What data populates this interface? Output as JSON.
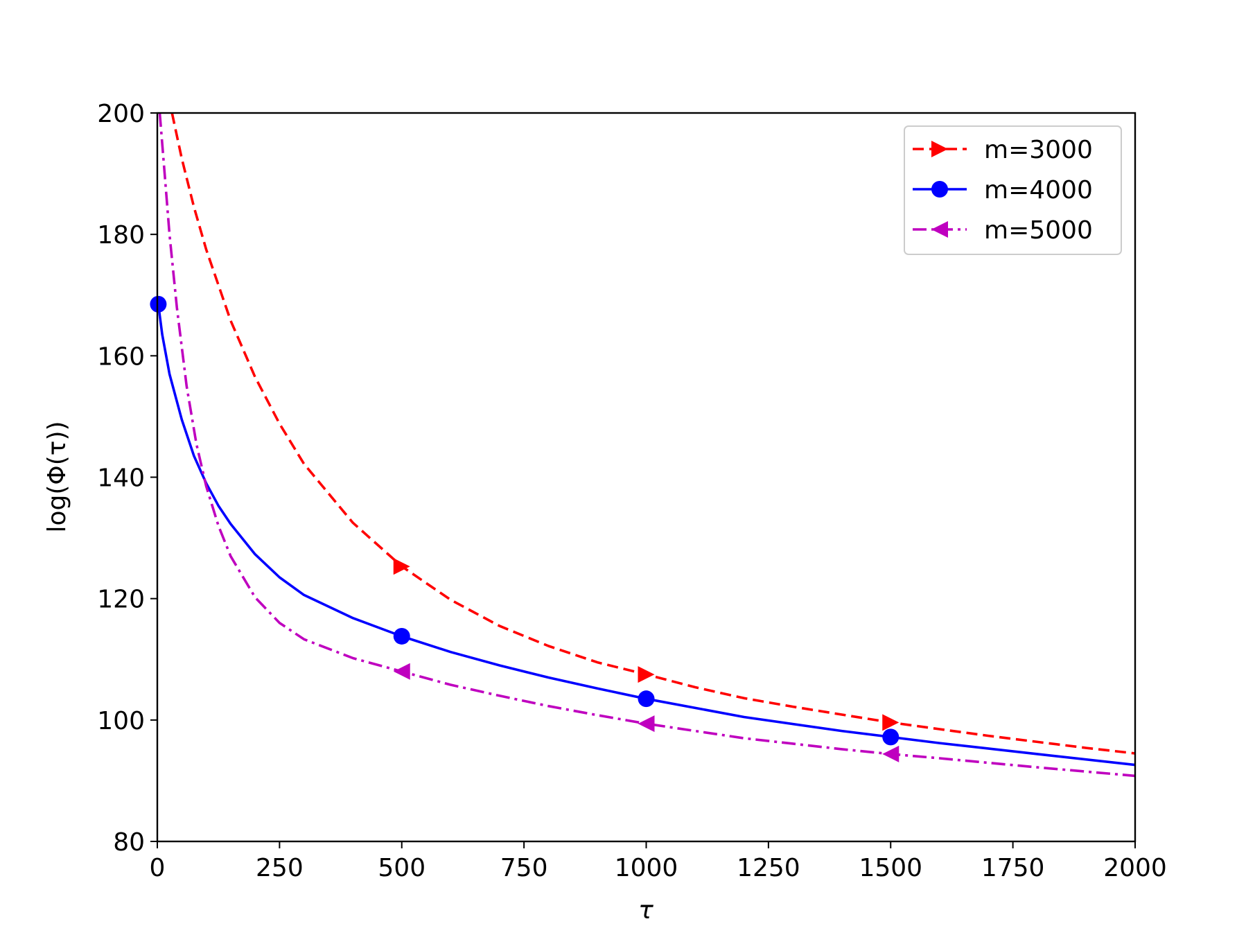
{
  "chart_data": {
    "type": "line",
    "title": "",
    "xlabel": "τ",
    "ylabel": "log(Φ(τ))",
    "xlim": [
      0,
      2000
    ],
    "ylim": [
      80,
      200
    ],
    "xticks": [
      0,
      250,
      500,
      750,
      1000,
      1250,
      1500,
      1750,
      2000
    ],
    "xtick_labels": [
      "0",
      "250",
      "500",
      "750",
      "1000",
      "1250",
      "1500",
      "1750",
      "2000"
    ],
    "yticks": [
      80,
      100,
      120,
      140,
      160,
      180,
      200
    ],
    "ytick_labels": [
      "80",
      "100",
      "120",
      "140",
      "160",
      "180",
      "200"
    ],
    "grid": false,
    "legend_position": "top-right",
    "series": [
      {
        "name": "m=3000",
        "color": "#ff0000",
        "line_style": "dashed",
        "marker": "triangle-right",
        "x": [
          30,
          50,
          75,
          100,
          150,
          200,
          250,
          300,
          400,
          500,
          600,
          700,
          800,
          900,
          1000,
          1100,
          1200,
          1300,
          1400,
          1500,
          1600,
          1700,
          1800,
          1900,
          2000
        ],
        "y": [
          200,
          192.5,
          184.5,
          177.5,
          165.8,
          156.5,
          148.8,
          142.2,
          132.5,
          125.3,
          119.8,
          115.5,
          112.2,
          109.5,
          107.5,
          105.4,
          103.6,
          102.2,
          100.9,
          99.6,
          98.5,
          97.4,
          96.4,
          95.4,
          94.5
        ],
        "marker_x": [
          500,
          1000,
          1500
        ],
        "marker_y": [
          125.3,
          107.5,
          99.6
        ]
      },
      {
        "name": "m=4000",
        "color": "#0000ff",
        "line_style": "solid",
        "marker": "circle",
        "x": [
          2,
          10,
          25,
          50,
          75,
          100,
          125,
          150,
          200,
          250,
          300,
          400,
          500,
          600,
          700,
          800,
          900,
          1000,
          1200,
          1400,
          1500,
          1600,
          1800,
          2000
        ],
        "y": [
          168.5,
          163.5,
          157,
          149.5,
          143.5,
          139,
          135.3,
          132.3,
          127.3,
          123.5,
          120.6,
          116.8,
          113.8,
          111.2,
          109.0,
          107.0,
          105.2,
          103.5,
          100.5,
          98.2,
          97.2,
          96.2,
          94.4,
          92.6
        ],
        "marker_x": [
          2,
          500,
          1000,
          1500
        ],
        "marker_y": [
          168.5,
          113.8,
          103.5,
          97.2
        ]
      },
      {
        "name": "m=5000",
        "color": "#bf00bf",
        "line_style": "dashdot",
        "marker": "triangle-left",
        "x": [
          5,
          15,
          25,
          40,
          60,
          80,
          100,
          125,
          150,
          200,
          250,
          300,
          400,
          500,
          600,
          700,
          800,
          900,
          1000,
          1200,
          1400,
          1500,
          1600,
          1800,
          2000
        ],
        "y": [
          200,
          190,
          180,
          168,
          155,
          145.5,
          138.5,
          132,
          127,
          120.2,
          116,
          113.3,
          110.2,
          108.0,
          105.8,
          104.0,
          102.3,
          100.8,
          99.4,
          97.0,
          95.2,
          94.4,
          93.7,
          92.2,
          90.8
        ],
        "marker_x": [
          500,
          1000,
          1500
        ],
        "marker_y": [
          108.0,
          99.4,
          94.4
        ]
      }
    ]
  }
}
